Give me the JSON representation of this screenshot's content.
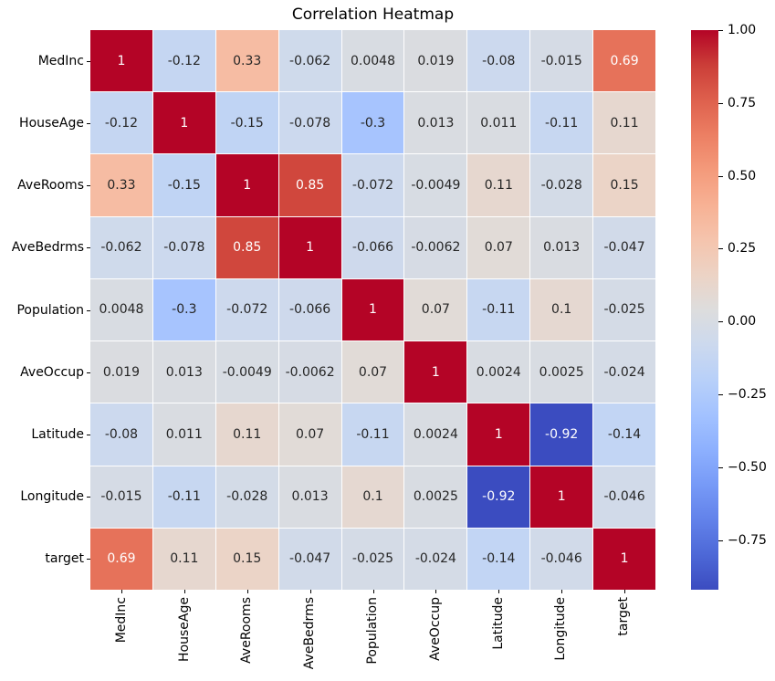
{
  "chart_data": {
    "type": "heatmap",
    "title": "Correlation Heatmap",
    "categories": [
      "MedInc",
      "HouseAge",
      "AveRooms",
      "AveBedrms",
      "Population",
      "AveOccup",
      "Latitude",
      "Longitude",
      "target"
    ],
    "matrix": [
      [
        1,
        -0.12,
        0.33,
        -0.062,
        0.0048,
        0.019,
        -0.08,
        -0.015,
        0.69
      ],
      [
        -0.12,
        1,
        -0.15,
        -0.078,
        -0.3,
        0.013,
        0.011,
        -0.11,
        0.11
      ],
      [
        0.33,
        -0.15,
        1,
        0.85,
        -0.072,
        -0.0049,
        0.11,
        -0.028,
        0.15
      ],
      [
        -0.062,
        -0.078,
        0.85,
        1,
        -0.066,
        -0.0062,
        0.07,
        0.013,
        -0.047
      ],
      [
        0.0048,
        -0.3,
        -0.072,
        -0.066,
        1,
        0.07,
        -0.11,
        0.1,
        -0.025
      ],
      [
        0.019,
        0.013,
        -0.0049,
        -0.0062,
        0.07,
        1,
        0.0024,
        0.0025,
        -0.024
      ],
      [
        -0.08,
        0.011,
        0.11,
        0.07,
        -0.11,
        0.0024,
        1,
        -0.92,
        -0.14
      ],
      [
        -0.015,
        -0.11,
        -0.028,
        0.013,
        0.1,
        0.0025,
        -0.92,
        1,
        -0.046
      ],
      [
        0.69,
        0.11,
        0.15,
        -0.047,
        -0.025,
        -0.024,
        -0.14,
        -0.046,
        1
      ]
    ],
    "matrix_labels": [
      [
        "1",
        "-0.12",
        "0.33",
        "-0.062",
        "0.0048",
        "0.019",
        "-0.08",
        "-0.015",
        "0.69"
      ],
      [
        "-0.12",
        "1",
        "-0.15",
        "-0.078",
        "-0.3",
        "0.013",
        "0.011",
        "-0.11",
        "0.11"
      ],
      [
        "0.33",
        "-0.15",
        "1",
        "0.85",
        "-0.072",
        "-0.0049",
        "0.11",
        "-0.028",
        "0.15"
      ],
      [
        "-0.062",
        "-0.078",
        "0.85",
        "1",
        "-0.066",
        "-0.0062",
        "0.07",
        "0.013",
        "-0.047"
      ],
      [
        "0.0048",
        "-0.3",
        "-0.072",
        "-0.066",
        "1",
        "0.07",
        "-0.11",
        "0.1",
        "-0.025"
      ],
      [
        "0.019",
        "0.013",
        "-0.0049",
        "-0.0062",
        "0.07",
        "1",
        "0.0024",
        "0.0025",
        "-0.024"
      ],
      [
        "-0.08",
        "0.011",
        "0.11",
        "0.07",
        "-0.11",
        "0.0024",
        "1",
        "-0.92",
        "-0.14"
      ],
      [
        "-0.015",
        "-0.11",
        "-0.028",
        "0.013",
        "0.1",
        "0.0025",
        "-0.92",
        "1",
        "-0.046"
      ],
      [
        "0.69",
        "0.11",
        "0.15",
        "-0.047",
        "-0.025",
        "-0.024",
        "-0.14",
        "-0.046",
        "1"
      ]
    ],
    "colormap": "coolwarm",
    "vmin": -0.92,
    "vmax": 1.0,
    "colorbar_ticks": [
      "1.00",
      "0.75",
      "0.50",
      "0.25",
      "0.00",
      "−0.25",
      "−0.50",
      "−0.75"
    ],
    "colorbar_tick_values": [
      1.0,
      0.75,
      0.5,
      0.25,
      0.0,
      -0.25,
      -0.5,
      -0.75
    ],
    "colormap_stops": [
      [
        0.0,
        [
          59,
          76,
          192
        ]
      ],
      [
        0.0625,
        [
          77,
          104,
          215
        ]
      ],
      [
        0.125,
        [
          98,
          130,
          234
        ]
      ],
      [
        0.1875,
        [
          119,
          154,
          247
        ]
      ],
      [
        0.25,
        [
          141,
          176,
          254
        ]
      ],
      [
        0.3125,
        [
          163,
          194,
          255
        ]
      ],
      [
        0.375,
        [
          184,
          208,
          249
        ]
      ],
      [
        0.4375,
        [
          204,
          217,
          238
        ]
      ],
      [
        0.5,
        [
          221,
          221,
          221
        ]
      ],
      [
        0.5625,
        [
          236,
          211,
          197
        ]
      ],
      [
        0.625,
        [
          245,
          196,
          173
        ]
      ],
      [
        0.6875,
        [
          247,
          177,
          148
        ]
      ],
      [
        0.75,
        [
          244,
          154,
          123
        ]
      ],
      [
        0.8125,
        [
          236,
          127,
          99
        ]
      ],
      [
        0.875,
        [
          222,
          96,
          77
        ]
      ],
      [
        0.9375,
        [
          203,
          62,
          56
        ]
      ],
      [
        1.0,
        [
          180,
          4,
          38
        ]
      ]
    ],
    "colors": {
      "annot_dark": "#262626",
      "annot_light": "#ffffff",
      "cell_border": "#ffffff",
      "background": "#ffffff"
    }
  }
}
